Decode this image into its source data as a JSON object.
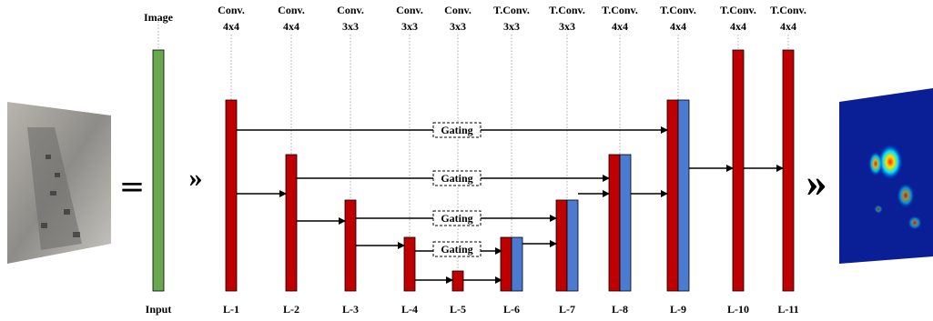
{
  "image_label": "Image",
  "input_label": "Input",
  "symbols": {
    "equals": "=",
    "arrow_in": "»",
    "arrow_out": "»"
  },
  "columns": [
    {
      "op": "Conv.",
      "kernel": "4x4",
      "label": "L-1"
    },
    {
      "op": "Conv.",
      "kernel": "4x4",
      "label": "L-2"
    },
    {
      "op": "Conv.",
      "kernel": "3x3",
      "label": "L-3"
    },
    {
      "op": "Conv.",
      "kernel": "3x3",
      "label": "L-4"
    },
    {
      "op": "Conv.",
      "kernel": "3x3",
      "label": "L-5"
    },
    {
      "op": "T.Conv.",
      "kernel": "3x3",
      "label": "L-6"
    },
    {
      "op": "T.Conv.",
      "kernel": "3x3",
      "label": "L-7"
    },
    {
      "op": "T.Conv.",
      "kernel": "4x4",
      "label": "L-8"
    },
    {
      "op": "T.Conv.",
      "kernel": "4x4",
      "label": "L-9"
    },
    {
      "op": "T.Conv.",
      "kernel": "4x4",
      "label": "L-10"
    },
    {
      "op": "T.Conv.",
      "kernel": "4x4",
      "label": "L-11"
    }
  ],
  "gating": [
    "Gating",
    "Gating",
    "Gating",
    "Gating"
  ]
}
